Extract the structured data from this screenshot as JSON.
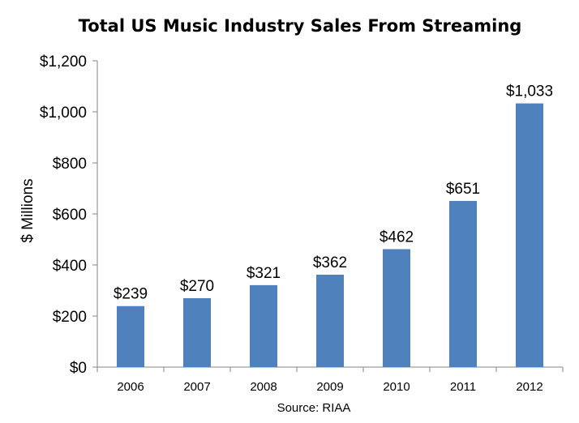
{
  "chart_data": {
    "type": "bar",
    "title": "Total US Music Industry Sales From Streaming",
    "xlabel": "",
    "ylabel": "$ Millions",
    "source": "Source: RIAA",
    "categories": [
      "2006",
      "2007",
      "2008",
      "2009",
      "2010",
      "2011",
      "2012"
    ],
    "values": [
      239,
      270,
      321,
      362,
      462,
      651,
      1033
    ],
    "data_labels": [
      "$239",
      "$270",
      "$321",
      "$362",
      "$462",
      "$651",
      "$1,033"
    ],
    "ylim": [
      0,
      1200
    ],
    "yticks": [
      0,
      200,
      400,
      600,
      800,
      1000,
      1200
    ],
    "ytick_labels": [
      "$0",
      "$200",
      "$400",
      "$600",
      "$800",
      "$1,000",
      "$1,200"
    ],
    "grid": false,
    "bar_color": "#4f81bd",
    "axis_color": "#868686"
  }
}
